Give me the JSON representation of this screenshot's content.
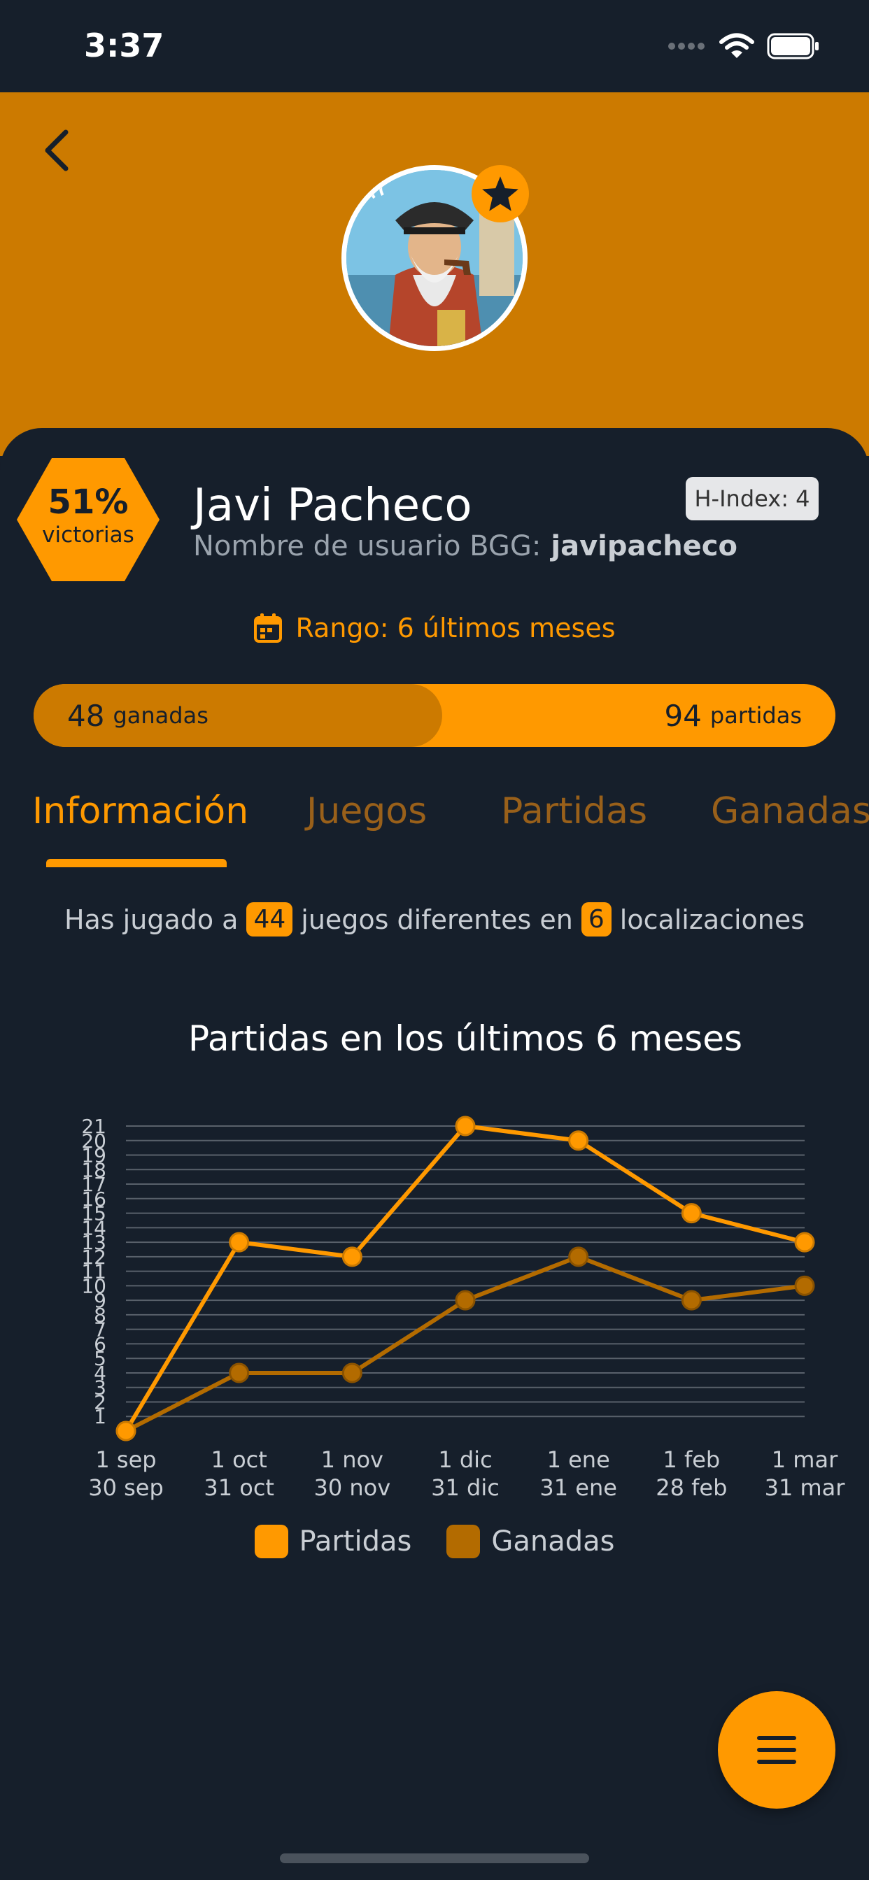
{
  "status_bar": {
    "time": "3:37"
  },
  "profile": {
    "win_percent": "51%",
    "win_label": "victorias",
    "name": "Javi Pacheco",
    "bgg_label": "Nombre de usuario BGG:",
    "bgg_username": "javipacheco",
    "h_index": "H-Index: 4"
  },
  "range": {
    "label": "Rango: 6 últimos meses"
  },
  "progress": {
    "won": "48",
    "won_label": "ganadas",
    "total": "94",
    "total_label": "partidas",
    "fraction": 0.51
  },
  "tabs": [
    {
      "label": "Información",
      "active": true
    },
    {
      "label": "Juegos",
      "active": false
    },
    {
      "label": "Partidas",
      "active": false
    },
    {
      "label": "Ganadas",
      "active": false
    }
  ],
  "summary": {
    "part1": "Has jugado a",
    "games": "44",
    "part2": "juegos diferentes en",
    "locations": "6",
    "part3": "localizaciones"
  },
  "colors": {
    "accent": "#ff9900",
    "accent_dark": "#cc7a00",
    "won_series": "#b36b00",
    "background": "#161f2b"
  },
  "chart_data": {
    "type": "line",
    "title": "Partidas en los últimos 6 meses",
    "categories": [
      [
        "1 sep",
        "30 sep"
      ],
      [
        "1 oct",
        "31 oct"
      ],
      [
        "1 nov",
        "30 nov"
      ],
      [
        "1 dic",
        "31 dic"
      ],
      [
        "1 ene",
        "31 ene"
      ],
      [
        "1 feb",
        "28 feb"
      ],
      [
        "1 mar",
        "31 mar"
      ]
    ],
    "yticks": [
      1,
      2,
      3,
      4,
      5,
      6,
      7,
      8,
      9,
      10,
      11,
      12,
      13,
      14,
      15,
      16,
      17,
      18,
      19,
      20,
      21
    ],
    "ylim": [
      0,
      21
    ],
    "grid": true,
    "legend_position": "bottom",
    "series": [
      {
        "name": "Partidas",
        "color": "#ff9900",
        "values": [
          0,
          13,
          12,
          21,
          20,
          15,
          13
        ]
      },
      {
        "name": "Ganadas",
        "color": "#b36b00",
        "values": [
          0,
          4,
          4,
          9,
          12,
          9,
          10
        ]
      }
    ]
  },
  "icons": {
    "back": "chevron-left-icon",
    "star": "star-icon",
    "calendar": "calendar-icon",
    "menu": "hamburger-menu-icon"
  }
}
